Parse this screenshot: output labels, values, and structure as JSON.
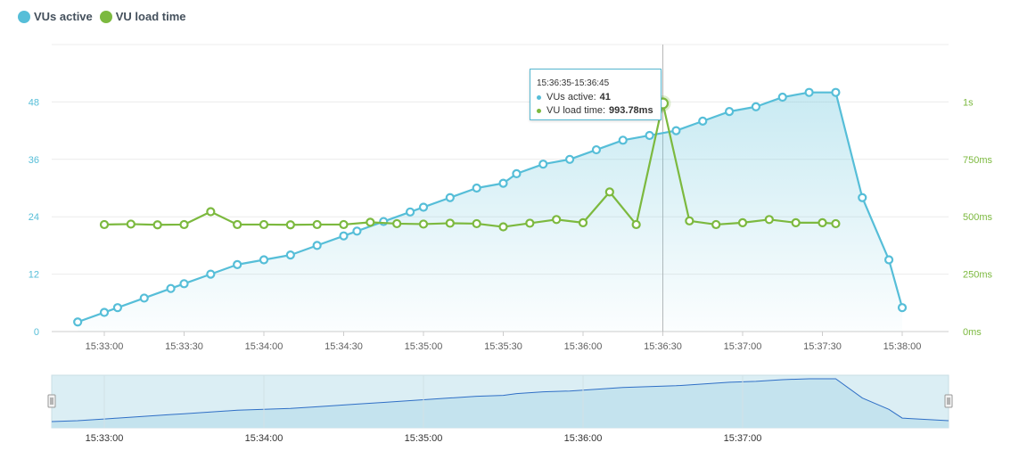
{
  "legend": [
    {
      "label": "VUs active",
      "color": "#56bed8"
    },
    {
      "label": "VU load time",
      "color": "#7cb93f"
    }
  ],
  "colors": {
    "vus": "#56bed8",
    "load": "#7cb93f",
    "grid": "#ececec",
    "navigator": "#2f6fc6"
  },
  "tooltip": {
    "title": "15:36:35-15:36:45",
    "vus_label": "VUs active: ",
    "vus_value": "41",
    "load_label": "VU load time: ",
    "load_value": "993.78ms"
  },
  "chart_data": {
    "type": "line",
    "x_ticks": [
      "15:33:00",
      "15:33:30",
      "15:34:00",
      "15:34:30",
      "15:35:00",
      "15:35:30",
      "15:36:00",
      "15:36:30",
      "15:37:00",
      "15:37:30",
      "15:38:00"
    ],
    "y_left": {
      "ticks": [
        "0",
        "12",
        "24",
        "36",
        "48"
      ],
      "range": [
        0,
        60
      ]
    },
    "y_right": {
      "ticks": [
        "0ms",
        "250ms",
        "500ms",
        "750ms",
        "1s"
      ],
      "range": [
        0,
        1250
      ],
      "unit": "ms"
    },
    "series": [
      {
        "name": "VUs active",
        "axis": "left",
        "area": true,
        "points": [
          [
            "15:32:50",
            2
          ],
          [
            "15:33:00",
            4
          ],
          [
            "15:33:05",
            5
          ],
          [
            "15:33:15",
            7
          ],
          [
            "15:33:25",
            9
          ],
          [
            "15:33:30",
            10
          ],
          [
            "15:33:40",
            12
          ],
          [
            "15:33:50",
            14
          ],
          [
            "15:34:00",
            15
          ],
          [
            "15:34:10",
            16
          ],
          [
            "15:34:20",
            18
          ],
          [
            "15:34:30",
            20
          ],
          [
            "15:34:35",
            21
          ],
          [
            "15:34:45",
            23
          ],
          [
            "15:34:55",
            25
          ],
          [
            "15:35:00",
            26
          ],
          [
            "15:35:10",
            28
          ],
          [
            "15:35:20",
            30
          ],
          [
            "15:35:30",
            31
          ],
          [
            "15:35:35",
            33
          ],
          [
            "15:35:45",
            35
          ],
          [
            "15:35:55",
            36
          ],
          [
            "15:36:05",
            38
          ],
          [
            "15:36:15",
            40
          ],
          [
            "15:36:25",
            41
          ],
          [
            "15:36:35",
            42
          ],
          [
            "15:36:45",
            44
          ],
          [
            "15:36:55",
            46
          ],
          [
            "15:37:05",
            47
          ],
          [
            "15:37:15",
            49
          ],
          [
            "15:37:25",
            50
          ],
          [
            "15:37:35",
            50
          ],
          [
            "15:37:45",
            28
          ],
          [
            "15:37:55",
            15
          ],
          [
            "15:38:00",
            5
          ]
        ]
      },
      {
        "name": "VU load time",
        "axis": "right",
        "area": false,
        "points": [
          [
            "15:33:00",
            466
          ],
          [
            "15:33:10",
            468
          ],
          [
            "15:33:20",
            465
          ],
          [
            "15:33:30",
            466
          ],
          [
            "15:33:40",
            522
          ],
          [
            "15:33:50",
            466
          ],
          [
            "15:34:00",
            466
          ],
          [
            "15:34:10",
            465
          ],
          [
            "15:34:20",
            466
          ],
          [
            "15:34:30",
            466
          ],
          [
            "15:34:40",
            476
          ],
          [
            "15:34:50",
            470
          ],
          [
            "15:35:00",
            468
          ],
          [
            "15:35:10",
            472
          ],
          [
            "15:35:20",
            470
          ],
          [
            "15:35:30",
            456
          ],
          [
            "15:35:40",
            472
          ],
          [
            "15:35:50",
            488
          ],
          [
            "15:36:00",
            474
          ],
          [
            "15:36:10",
            608
          ],
          [
            "15:36:20",
            466
          ],
          [
            "15:36:30",
            993.78
          ],
          [
            "15:36:40",
            482
          ],
          [
            "15:36:50",
            466
          ],
          [
            "15:37:00",
            474
          ],
          [
            "15:37:10",
            488
          ],
          [
            "15:37:20",
            474
          ],
          [
            "15:37:30",
            474
          ],
          [
            "15:37:35",
            470
          ]
        ]
      }
    ],
    "crosshair_at": "15:36:30",
    "navigator": {
      "x_ticks": [
        "15:33:00",
        "15:34:00",
        "15:35:00",
        "15:36:00",
        "15:37:00"
      ]
    }
  }
}
